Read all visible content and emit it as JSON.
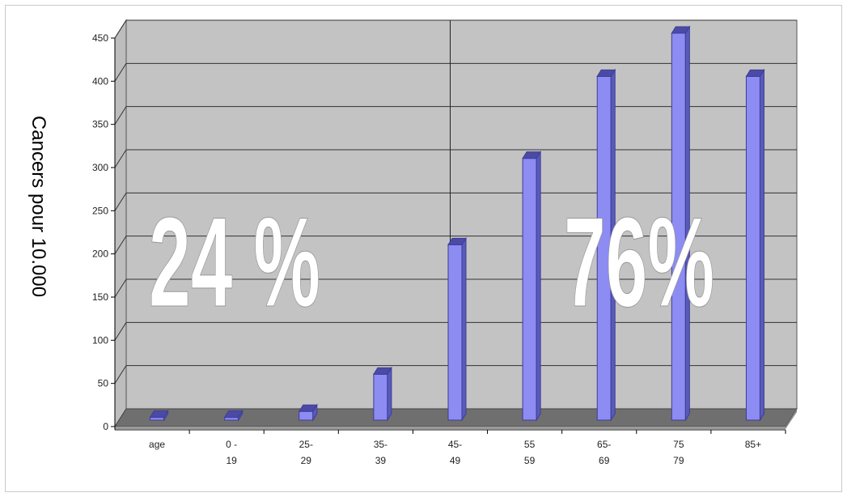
{
  "chart_data": {
    "type": "bar",
    "ylabel": "Cancers pour 10.000",
    "xlabel": "",
    "ylim": [
      0,
      450
    ],
    "yticks": [
      0,
      50,
      100,
      150,
      200,
      250,
      300,
      350,
      400,
      450
    ],
    "ytick_labels": [
      "0",
      "50",
      "100",
      "150",
      "200",
      "250",
      "300",
      "350",
      "400",
      "450"
    ],
    "categories": [
      {
        "line1": "age",
        "line2": ""
      },
      {
        "line1": "0 -",
        "line2": "19"
      },
      {
        "line1": "25-",
        "line2": "29"
      },
      {
        "line1": "35-",
        "line2": "39"
      },
      {
        "line1": "45-",
        "line2": "49"
      },
      {
        "line1": "55",
        "line2": "59"
      },
      {
        "line1": "65-",
        "line2": "69"
      },
      {
        "line1": "75",
        "line2": "79"
      },
      {
        "line1": "85+",
        "line2": ""
      }
    ],
    "values": [
      5,
      5,
      12,
      55,
      205,
      305,
      400,
      450,
      400
    ],
    "grid": true,
    "colors": {
      "bar_front": "#8c8cf2",
      "bar_side": "#5a5ab8",
      "bar_top": "#4b4ba6",
      "back_wall": "#c3c3c3",
      "side_wall": "#bdbdbd",
      "floor": "#6f6f6f",
      "grid": "#333333"
    },
    "annotations": [
      {
        "text": "24 %"
      },
      {
        "text": "76%"
      }
    ]
  }
}
